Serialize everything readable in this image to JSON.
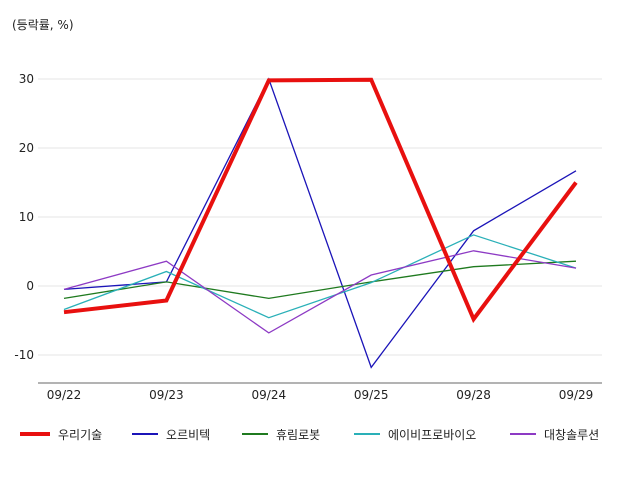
{
  "chart_data": {
    "type": "line",
    "unit_label": "(등락률, %)",
    "categories": [
      "09/22",
      "09/23",
      "09/24",
      "09/25",
      "09/28",
      "09/29"
    ],
    "y_ticks": [
      30,
      20,
      10,
      0,
      -10
    ],
    "ylim": [
      -14,
      33
    ],
    "grid": true,
    "legend_position": "bottom",
    "series": [
      {
        "name": "우리기술",
        "color": "#e8100f",
        "values": [
          -3.8,
          -2.1,
          29.8,
          29.9,
          -4.8,
          15.0
        ]
      },
      {
        "name": "오르비텍",
        "color": "#1b14b8",
        "values": [
          -0.5,
          0.6,
          30.0,
          -11.8,
          8.0,
          16.7
        ]
      },
      {
        "name": "휴림로봇",
        "color": "#1f7a1f",
        "values": [
          -1.8,
          0.6,
          -1.8,
          0.6,
          2.8,
          3.6
        ]
      },
      {
        "name": "에이비프로바이오",
        "color": "#2ab0b8",
        "values": [
          -3.4,
          2.1,
          -4.6,
          0.5,
          7.4,
          2.6
        ]
      },
      {
        "name": "대창솔루션",
        "color": "#8d3ac4",
        "values": [
          -0.5,
          3.6,
          -6.8,
          1.6,
          5.1,
          2.6
        ]
      }
    ]
  }
}
